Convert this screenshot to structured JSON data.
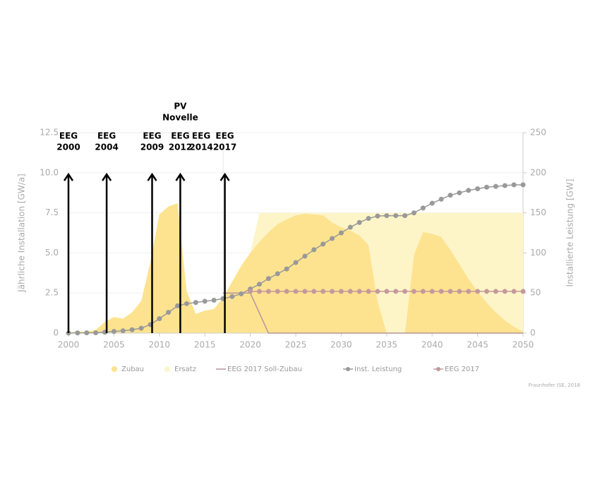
{
  "chart_data": {
    "type": "area",
    "x": [
      2000,
      2001,
      2002,
      2003,
      2004,
      2005,
      2006,
      2007,
      2008,
      2009,
      2010,
      2011,
      2012,
      2013,
      2014,
      2015,
      2016,
      2017,
      2018,
      2019,
      2020,
      2021,
      2022,
      2023,
      2024,
      2025,
      2026,
      2027,
      2028,
      2029,
      2030,
      2031,
      2032,
      2033,
      2034,
      2035,
      2036,
      2037,
      2038,
      2039,
      2040,
      2041,
      2042,
      2043,
      2044,
      2045,
      2046,
      2047,
      2048,
      2049,
      2050
    ],
    "xlim": [
      2000,
      2050
    ],
    "xticks": [
      2000,
      2005,
      2010,
      2015,
      2020,
      2025,
      2030,
      2035,
      2040,
      2045,
      2050
    ],
    "ylim": [
      0,
      12.5
    ],
    "yticks": [
      0,
      2.5,
      {
        "value": 5,
        "label": "5.0"
      },
      7.5,
      {
        "value": 10,
        "label": "10.0"
      },
      12.5
    ],
    "y2lim": [
      0,
      250
    ],
    "y2ticks": [
      0,
      50,
      100,
      150,
      200,
      250
    ],
    "ylabel": "Jährliche Installation [GW/a]",
    "y2label": "Installierte Leistung [GW]",
    "grid": true,
    "series": [
      {
        "name": "Zubau",
        "type": "area",
        "color": "#fde38f",
        "values": [
          0.05,
          0.1,
          0.1,
          0.2,
          0.7,
          1.0,
          0.9,
          1.3,
          2.0,
          4.4,
          7.4,
          7.9,
          8.1,
          2.6,
          1.2,
          1.4,
          1.5,
          2.2,
          3.2,
          4.2,
          5.0,
          5.7,
          6.3,
          6.8,
          7.1,
          7.35,
          7.45,
          7.4,
          7.35,
          6.9,
          6.6,
          6.4,
          6.1,
          5.5,
          2.0,
          0,
          0,
          0,
          4.9,
          6.3,
          6.2,
          6.0,
          5.2,
          4.3,
          3.4,
          2.6,
          1.9,
          1.3,
          0.8,
          0.4,
          0.1
        ]
      },
      {
        "name": "Ersatz",
        "type": "area",
        "stacked": true,
        "color": "#fdf5c8",
        "values": [
          0,
          0,
          0,
          0,
          0,
          0,
          0,
          0,
          0,
          0,
          0,
          0,
          0,
          0,
          0,
          0,
          0,
          0,
          0,
          0,
          0,
          1.8,
          1.2,
          0.7,
          0.4,
          0.15,
          0.05,
          0.1,
          0.15,
          0.6,
          0.9,
          1.1,
          1.4,
          2.0,
          5.5,
          7.5,
          7.5,
          7.5,
          2.6,
          1.2,
          1.3,
          1.5,
          2.3,
          3.2,
          4.1,
          4.9,
          5.6,
          6.2,
          6.7,
          7.1,
          7.4
        ]
      },
      {
        "name": "EEG 2017 Soll-Zubau",
        "type": "line",
        "color": "#b8939a",
        "values": [
          null,
          null,
          null,
          null,
          null,
          null,
          null,
          null,
          null,
          null,
          null,
          null,
          null,
          null,
          null,
          null,
          null,
          2.5,
          2.5,
          2.5,
          2.5,
          1.25,
          0,
          0,
          0,
          0,
          0,
          0,
          0,
          0,
          0,
          0,
          0,
          0,
          0,
          0,
          0,
          0,
          0,
          0,
          0,
          0,
          0,
          0,
          0,
          0,
          0,
          0,
          0,
          0,
          0
        ]
      },
      {
        "name": "Inst. Leistung",
        "type": "dotline",
        "axis": "y2",
        "color": "#999999",
        "values": [
          0.1,
          0.2,
          0.3,
          0.4,
          1.1,
          2.1,
          2.9,
          4.2,
          6.1,
          10.6,
          18,
          25.9,
          34,
          36.7,
          38.2,
          39.7,
          41,
          43,
          45.5,
          49,
          55,
          61,
          68,
          74,
          80,
          88,
          96,
          104,
          111,
          118,
          125,
          132,
          138,
          143,
          146,
          146.5,
          146.5,
          146.5,
          150,
          156,
          162,
          167,
          172,
          175,
          178,
          180,
          182,
          183,
          184,
          185,
          185
        ]
      },
      {
        "name": "EEG 2017",
        "type": "dotline",
        "axis": "y2",
        "color": "#c4999c",
        "values": [
          null,
          null,
          null,
          null,
          null,
          null,
          null,
          null,
          null,
          null,
          null,
          null,
          null,
          null,
          null,
          null,
          null,
          null,
          null,
          null,
          52,
          52,
          52,
          52,
          52,
          52,
          52,
          52,
          52,
          52,
          52,
          52,
          52,
          52,
          52,
          52,
          52,
          52,
          52,
          52,
          52,
          52,
          52,
          52,
          52,
          52,
          52,
          52,
          52,
          52,
          52
        ]
      }
    ],
    "annotations": [
      {
        "lines": [
          "EEG",
          "2000"
        ],
        "x": 2000,
        "arrow": true
      },
      {
        "lines": [
          "EEG",
          "2004"
        ],
        "x": 2004.2,
        "arrow": true
      },
      {
        "lines": [
          "EEG",
          "2009"
        ],
        "x": 2009.2,
        "arrow": true
      },
      {
        "lines": [
          "EEG",
          "2012"
        ],
        "x": 2012.3,
        "arrow": true
      },
      {
        "lines": [
          "EEG",
          "2014"
        ],
        "x": 2014.6,
        "arrow": false
      },
      {
        "lines": [
          "EEG",
          "2017"
        ],
        "x": 2017.2,
        "arrow": true
      }
    ],
    "note": {
      "lines": [
        "PV",
        "Novelle"
      ],
      "x": 2012.3
    },
    "credit": "Fraunhofer ISE, 2018"
  }
}
